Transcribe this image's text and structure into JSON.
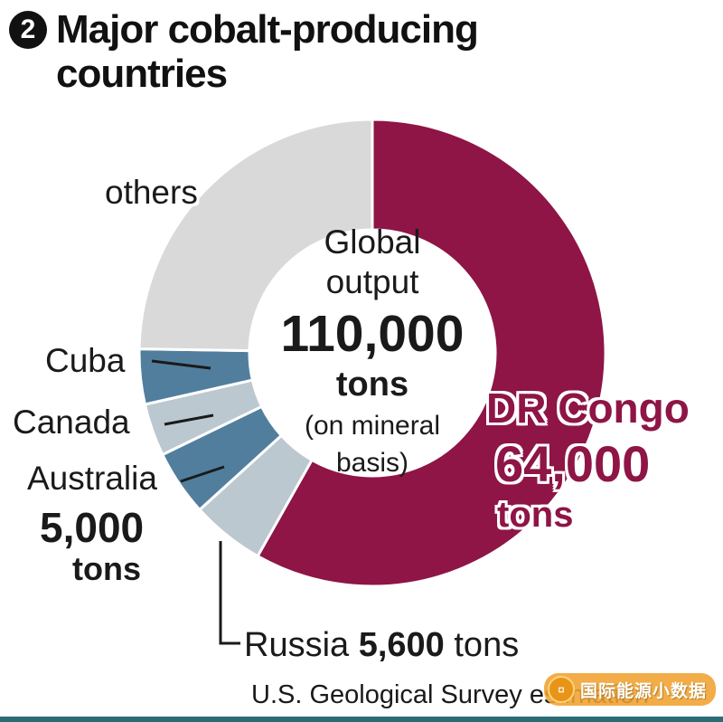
{
  "title": {
    "badge": "2",
    "line1": "Major cobalt-producing",
    "line2": "countries"
  },
  "chart_data": {
    "type": "pie",
    "variant": "donut",
    "title": "Major cobalt-producing countries",
    "unit": "tons",
    "total": 110000,
    "center_label": {
      "line1": "Global",
      "line2": "output",
      "value": "110,000",
      "unit": "tons",
      "note1": "(on mineral",
      "note2": "basis)"
    },
    "segments": [
      {
        "name": "DR Congo",
        "value": 64000,
        "value_label": "64,000",
        "color": "#8e1546",
        "value_shown": true
      },
      {
        "name": "Russia",
        "value": 5600,
        "value_label": "5,600",
        "color": "#bcc8d0",
        "value_shown": true
      },
      {
        "name": "Australia",
        "value": 5000,
        "value_label": "5,000",
        "color": "#527e9e",
        "value_shown": true
      },
      {
        "name": "Canada",
        "value": 4000,
        "value_label": "",
        "color": "#bcc8d0",
        "value_shown": false
      },
      {
        "name": "Cuba",
        "value": 4200,
        "value_label": "",
        "color": "#527e9e",
        "value_shown": false
      },
      {
        "name": "others",
        "value": 27200,
        "value_label": "",
        "color": "#d9d9d9",
        "value_shown": false
      }
    ],
    "start_angle_deg": 0,
    "direction": "clockwise",
    "legend_position": "around-labels"
  },
  "labels": {
    "others": "others",
    "cuba": "Cuba",
    "canada": "Canada",
    "australia": "Australia",
    "australia_value": "5,000",
    "australia_unit": "tons",
    "dr_congo": "DR Congo",
    "dr_congo_value": "64,000",
    "dr_congo_unit": "tons",
    "russia": "Russia",
    "russia_value": "5,600",
    "russia_unit": "tons"
  },
  "source": {
    "text": "U.S. Geological Survey estimation"
  },
  "watermark": {
    "text": "国际能源小数据",
    "logo": "coin-icon"
  },
  "colors": {
    "dr_congo": "#8e1546",
    "steel_blue": "#527e9e",
    "light_blue_gray": "#bcc8d0",
    "others_gray": "#d9d9d9",
    "watermark_orange": "#f0a230",
    "bottom_bar_teal": "#2b6c76",
    "text": "#1a1a1a"
  }
}
